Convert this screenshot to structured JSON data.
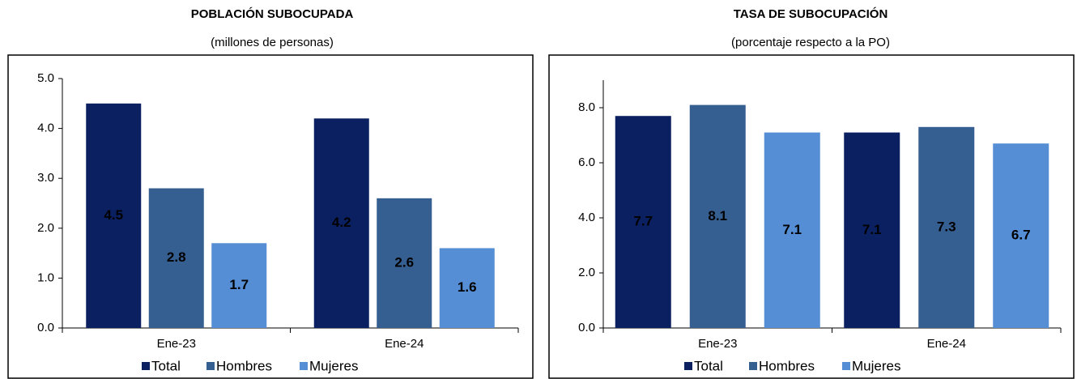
{
  "chart_data": [
    {
      "type": "bar",
      "title": "POBLACIÓN SUBOCUPADA",
      "subtitle": "(millones de personas)",
      "categories": [
        "Ene-23",
        "Ene-24"
      ],
      "series": [
        {
          "name": "Total",
          "color": "#0b2060",
          "label_color": "#ffffff",
          "values": [
            4.5,
            4.2
          ]
        },
        {
          "name": "Hombres",
          "color": "#365f91",
          "label_color": "#ffffff",
          "values": [
            2.8,
            2.6
          ]
        },
        {
          "name": "Mujeres",
          "color": "#558ed5",
          "label_color": "#000000",
          "values": [
            1.7,
            1.6
          ]
        }
      ],
      "ylim": [
        0,
        5
      ],
      "yticks": [
        {
          "value": 0,
          "label": "0.0"
        },
        {
          "value": 1,
          "label": "1.0"
        },
        {
          "value": 2,
          "label": "2.0"
        },
        {
          "value": 3,
          "label": "3.0"
        },
        {
          "value": 4,
          "label": "4.0"
        },
        {
          "value": 5,
          "label": "5.0"
        }
      ],
      "legend": "bottom"
    },
    {
      "type": "bar",
      "title": "TASA DE SUBOCUPACIÓN",
      "subtitle": "(porcentaje respecto a la PO)",
      "categories": [
        "Ene-23",
        "Ene-24"
      ],
      "series": [
        {
          "name": "Total",
          "color": "#0b2060",
          "label_color": "#ffffff",
          "values": [
            7.7,
            7.1
          ]
        },
        {
          "name": "Hombres",
          "color": "#365f91",
          "label_color": "#ffffff",
          "values": [
            8.1,
            7.3
          ]
        },
        {
          "name": "Mujeres",
          "color": "#558ed5",
          "label_color": "#000000",
          "values": [
            7.1,
            6.7
          ]
        }
      ],
      "ylim": [
        0,
        9
      ],
      "yticks": [
        {
          "value": 0,
          "label": "0.0"
        },
        {
          "value": 2,
          "label": "2.0"
        },
        {
          "value": 4,
          "label": "4.0"
        },
        {
          "value": 6,
          "label": "6.0"
        },
        {
          "value": 8,
          "label": "8.0"
        }
      ],
      "legend": "bottom"
    }
  ]
}
